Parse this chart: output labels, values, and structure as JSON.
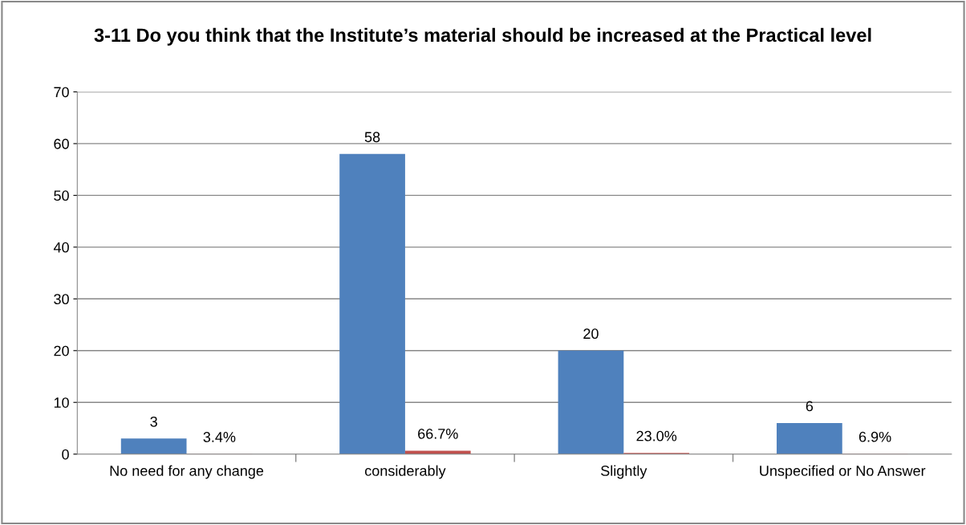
{
  "chart_data": {
    "type": "bar",
    "title": "3-11 Do you think that the Institute’s material should be increased at the Practical level",
    "categories": [
      "No need for any change",
      "considerably",
      "Slightly",
      "Unspecified or No Answer"
    ],
    "series": [
      {
        "color": "#4f81bd",
        "values": [
          3,
          58,
          20,
          6
        ],
        "value_labels": [
          "3",
          "58",
          "20",
          "6"
        ]
      },
      {
        "color": "#c0504d",
        "values": [
          0.034,
          0.667,
          0.23,
          0.069
        ],
        "value_labels": [
          "3.4%",
          "66.7%",
          "23.0%",
          "6.9%"
        ]
      }
    ],
    "ylim": [
      0,
      70
    ],
    "yticks": [
      0,
      10,
      20,
      30,
      40,
      50,
      60,
      70
    ],
    "grid": "y",
    "legend": false
  }
}
